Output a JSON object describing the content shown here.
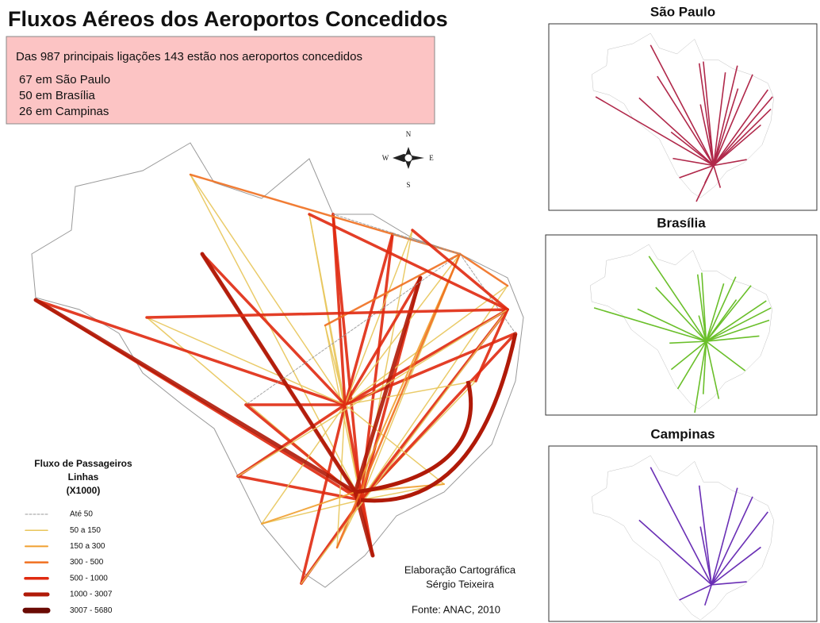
{
  "title": "Fluxos Aéreos dos Aeroportos Concedidos",
  "info": {
    "headline": "Das 987 principais ligações 143 estão nos aeroportos concedidos",
    "items": [
      "67 em São Paulo",
      "50 em Brasília",
      "26 em Campinas"
    ]
  },
  "compass": {
    "n": "N",
    "w": "W",
    "e": "E",
    "s": "S"
  },
  "legend": {
    "title": [
      "Fluxo de Passageiros",
      "Linhas",
      "(X1000)"
    ],
    "items": [
      {
        "label": "Até 50",
        "color": "#9a9a9a"
      },
      {
        "label": "50 a 150",
        "color": "#e8c65a"
      },
      {
        "label": "150 a 300",
        "color": "#f0a030"
      },
      {
        "label": "300 - 500",
        "color": "#f07020"
      },
      {
        "label": "500 - 1000",
        "color": "#e02a10"
      },
      {
        "label": "1000 - 3007",
        "color": "#b01a08"
      },
      {
        "label": "3007 - 5680",
        "color": "#6a0a04"
      }
    ]
  },
  "credits": [
    "Elaboração Cartográfica",
    "Sérgio Teixeira"
  ],
  "source": "Fonte: ANAC, 2010",
  "insets": [
    {
      "title": "São Paulo",
      "color": "#b0284a"
    },
    {
      "title": "Brasília",
      "color": "#6abf2a"
    },
    {
      "title": "Campinas",
      "color": "#6a2fb5"
    }
  ]
}
